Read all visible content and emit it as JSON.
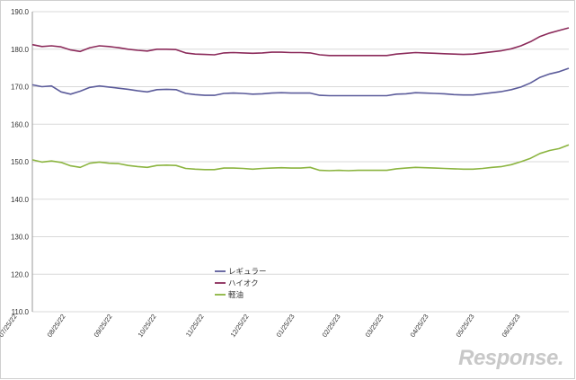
{
  "chart_data": {
    "type": "line",
    "title": "",
    "xlabel": "",
    "ylabel": "",
    "ylim": [
      110,
      190
    ],
    "y_ticks": [
      "110.0",
      "120.0",
      "130.0",
      "140.0",
      "150.0",
      "160.0",
      "170.0",
      "180.0",
      "190.0"
    ],
    "x_tick_labels": [
      "07/25/22",
      "08/25/22",
      "09/25/22",
      "10/25/22",
      "11/25/22",
      "12/25/22",
      "01/25/23",
      "02/25/23",
      "03/25/23",
      "04/25/23",
      "05/25/23",
      "06/25/23"
    ],
    "grid": "horizontal",
    "legend_position": "center-bottom",
    "series": [
      {
        "name": "レギュラー",
        "color": "#5b5b9a",
        "values": [
          170.5,
          170.0,
          170.2,
          168.6,
          168.0,
          168.8,
          169.8,
          170.2,
          169.9,
          169.6,
          169.3,
          168.9,
          168.6,
          169.2,
          169.3,
          169.2,
          168.2,
          167.9,
          167.7,
          167.7,
          168.2,
          168.3,
          168.2,
          168.0,
          168.1,
          168.3,
          168.4,
          168.3,
          168.3,
          168.3,
          167.7,
          167.6,
          167.6,
          167.6,
          167.6,
          167.6,
          167.6,
          167.6,
          168.0,
          168.1,
          168.4,
          168.3,
          168.2,
          168.1,
          167.9,
          167.8,
          167.8,
          168.1,
          168.4,
          168.7,
          169.2,
          169.9,
          171.0,
          172.5,
          173.4,
          174.0,
          174.9
        ]
      },
      {
        "name": "ハイオク",
        "color": "#8b2a5a",
        "values": [
          181.2,
          180.7,
          180.9,
          180.6,
          179.8,
          179.4,
          180.4,
          180.9,
          180.7,
          180.4,
          180.0,
          179.7,
          179.5,
          180.0,
          180.0,
          179.9,
          179.0,
          178.7,
          178.6,
          178.5,
          179.0,
          179.1,
          179.0,
          178.9,
          179.0,
          179.2,
          179.2,
          179.1,
          179.1,
          179.0,
          178.5,
          178.3,
          178.3,
          178.3,
          178.3,
          178.3,
          178.3,
          178.3,
          178.7,
          178.9,
          179.1,
          179.0,
          178.9,
          178.8,
          178.7,
          178.6,
          178.7,
          179.0,
          179.3,
          179.6,
          180.1,
          180.9,
          182.0,
          183.4,
          184.3,
          185.0,
          185.7
        ]
      },
      {
        "name": "軽油",
        "color": "#8bb43f",
        "values": [
          150.5,
          149.9,
          150.2,
          149.8,
          148.9,
          148.5,
          149.6,
          149.9,
          149.6,
          149.5,
          149.0,
          148.7,
          148.5,
          149.0,
          149.1,
          149.0,
          148.2,
          148.0,
          147.9,
          147.9,
          148.3,
          148.3,
          148.2,
          148.0,
          148.2,
          148.3,
          148.4,
          148.3,
          148.3,
          148.5,
          147.7,
          147.6,
          147.7,
          147.6,
          147.7,
          147.7,
          147.7,
          147.7,
          148.1,
          148.3,
          148.5,
          148.4,
          148.3,
          148.2,
          148.1,
          148.0,
          148.0,
          148.2,
          148.5,
          148.7,
          149.2,
          150.0,
          150.9,
          152.2,
          153.0,
          153.5,
          154.5
        ]
      }
    ]
  },
  "watermark_text": "Response."
}
